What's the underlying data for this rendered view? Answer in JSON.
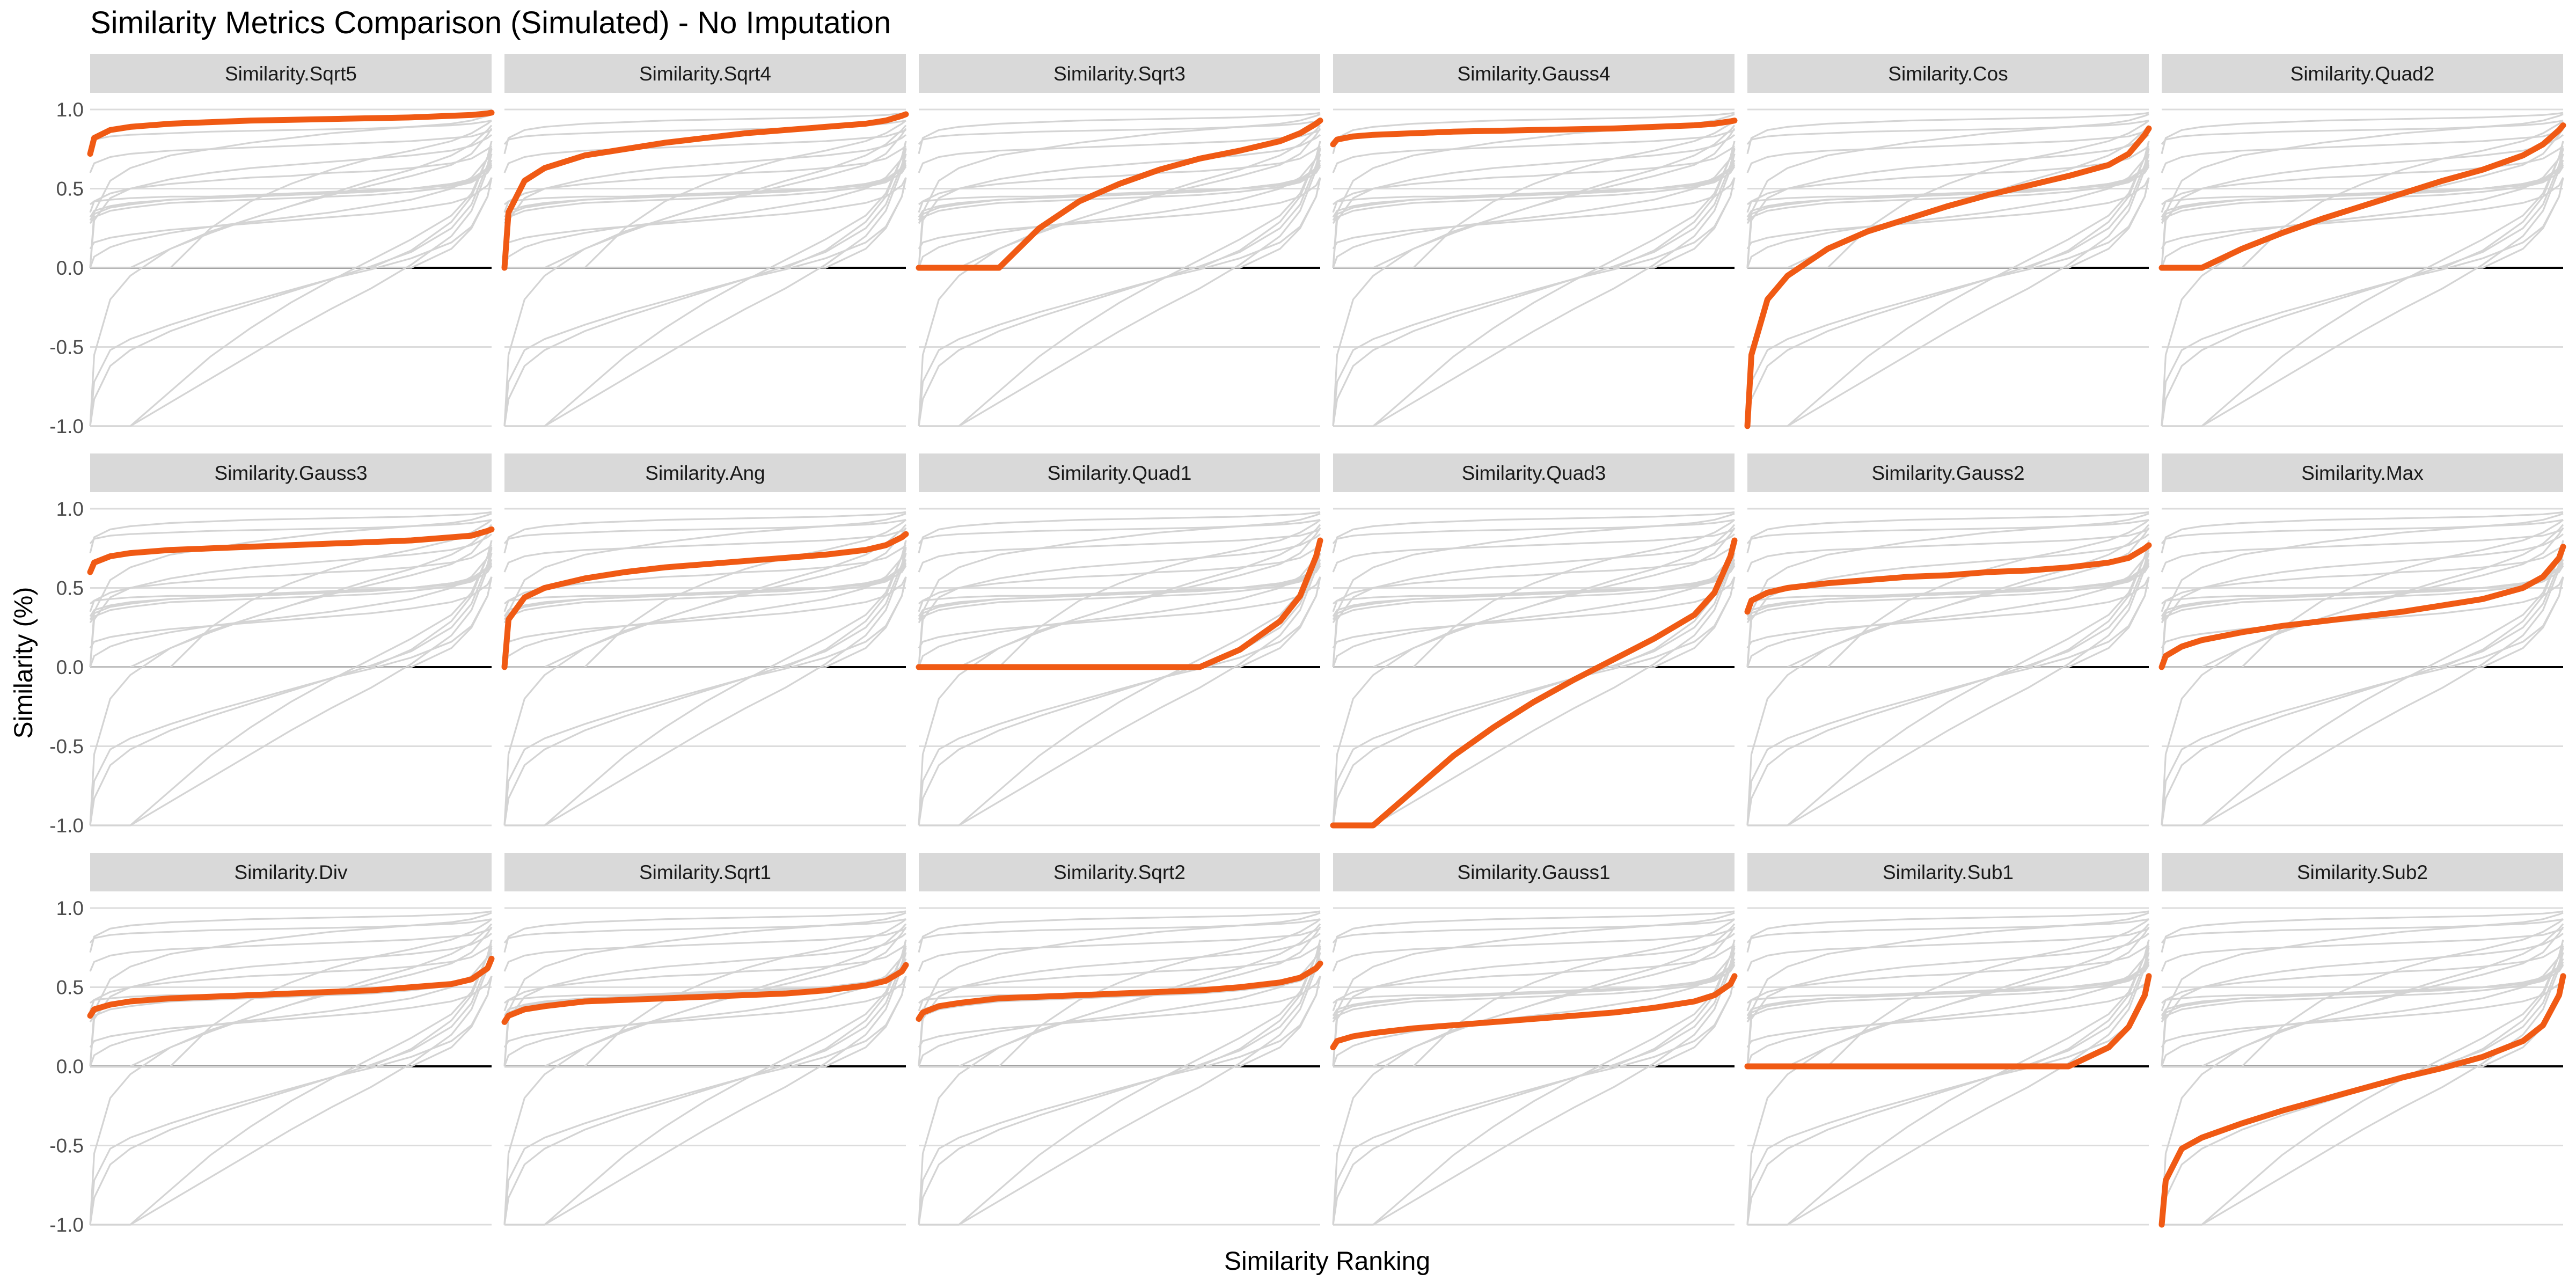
{
  "chart_data": {
    "type": "line",
    "title": "Similarity Metrics Comparison (Simulated) - No Imputation",
    "xlabel": "Similarity Ranking",
    "ylabel": "Similarity (%)",
    "ylim": [
      -1,
      1
    ],
    "yticks": [
      1.0,
      0.5,
      0.0,
      -0.5,
      -1.0
    ],
    "ytick_labels": [
      "1.0",
      "0.5",
      "0.0",
      "-0.5",
      "-1.0"
    ],
    "x": [
      0,
      0.01,
      0.05,
      0.1,
      0.2,
      0.3,
      0.4,
      0.5,
      0.6,
      0.7,
      0.8,
      0.9,
      0.95,
      0.99,
      1.0
    ],
    "grid": true,
    "legend": "none",
    "highlight_color": "#f05a14",
    "background_color": "#d4d4d4",
    "panels": [
      {
        "name": "Similarity.Sqrt5",
        "values": [
          0.72,
          0.82,
          0.87,
          0.89,
          0.91,
          0.92,
          0.93,
          0.935,
          0.94,
          0.945,
          0.95,
          0.96,
          0.965,
          0.975,
          0.98
        ]
      },
      {
        "name": "Similarity.Sqrt4",
        "values": [
          0.0,
          0.35,
          0.55,
          0.63,
          0.71,
          0.75,
          0.79,
          0.82,
          0.85,
          0.87,
          0.89,
          0.91,
          0.93,
          0.96,
          0.97
        ]
      },
      {
        "name": "Similarity.Sqrt3",
        "values": [
          0.0,
          0.0,
          0.0,
          0.0,
          0.0,
          0.25,
          0.42,
          0.53,
          0.62,
          0.69,
          0.74,
          0.8,
          0.85,
          0.91,
          0.93
        ]
      },
      {
        "name": "Similarity.Gauss4",
        "values": [
          0.78,
          0.81,
          0.83,
          0.84,
          0.85,
          0.86,
          0.865,
          0.87,
          0.875,
          0.88,
          0.89,
          0.9,
          0.91,
          0.925,
          0.93
        ]
      },
      {
        "name": "Similarity.Cos",
        "values": [
          -1.0,
          -0.55,
          -0.2,
          -0.05,
          0.12,
          0.23,
          0.31,
          0.39,
          0.46,
          0.52,
          0.58,
          0.65,
          0.72,
          0.84,
          0.88
        ]
      },
      {
        "name": "Similarity.Quad2",
        "values": [
          0.0,
          0.0,
          0.0,
          0.0,
          0.12,
          0.22,
          0.31,
          0.39,
          0.47,
          0.55,
          0.62,
          0.71,
          0.78,
          0.87,
          0.9
        ]
      },
      {
        "name": "Similarity.Gauss3",
        "values": [
          0.6,
          0.66,
          0.7,
          0.72,
          0.74,
          0.75,
          0.76,
          0.77,
          0.78,
          0.79,
          0.8,
          0.82,
          0.83,
          0.86,
          0.87
        ]
      },
      {
        "name": "Similarity.Ang",
        "values": [
          0.0,
          0.3,
          0.44,
          0.5,
          0.56,
          0.6,
          0.63,
          0.65,
          0.67,
          0.69,
          0.71,
          0.74,
          0.77,
          0.82,
          0.84
        ]
      },
      {
        "name": "Similarity.Quad1",
        "values": [
          0.0,
          0.0,
          0.0,
          0.0,
          0.0,
          0.0,
          0.0,
          0.0,
          0.0,
          0.0,
          0.11,
          0.29,
          0.45,
          0.7,
          0.8
        ]
      },
      {
        "name": "Similarity.Quad3",
        "values": [
          -1.0,
          -1.0,
          -1.0,
          -1.0,
          -0.78,
          -0.56,
          -0.38,
          -0.22,
          -0.08,
          0.05,
          0.18,
          0.33,
          0.47,
          0.7,
          0.8
        ]
      },
      {
        "name": "Similarity.Gauss2",
        "values": [
          0.35,
          0.42,
          0.47,
          0.5,
          0.53,
          0.55,
          0.57,
          0.58,
          0.6,
          0.61,
          0.63,
          0.66,
          0.69,
          0.75,
          0.77
        ]
      },
      {
        "name": "Similarity.Max",
        "values": [
          0.0,
          0.07,
          0.13,
          0.17,
          0.22,
          0.26,
          0.29,
          0.32,
          0.35,
          0.39,
          0.43,
          0.5,
          0.57,
          0.69,
          0.76
        ]
      },
      {
        "name": "Similarity.Div",
        "values": [
          0.32,
          0.36,
          0.39,
          0.41,
          0.43,
          0.44,
          0.45,
          0.46,
          0.47,
          0.48,
          0.5,
          0.52,
          0.55,
          0.62,
          0.68
        ]
      },
      {
        "name": "Similarity.Sqrt1",
        "values": [
          0.28,
          0.32,
          0.36,
          0.38,
          0.41,
          0.42,
          0.43,
          0.44,
          0.45,
          0.46,
          0.48,
          0.51,
          0.54,
          0.6,
          0.64
        ]
      },
      {
        "name": "Similarity.Sqrt2",
        "values": [
          0.3,
          0.34,
          0.38,
          0.4,
          0.43,
          0.44,
          0.45,
          0.46,
          0.47,
          0.48,
          0.5,
          0.53,
          0.56,
          0.62,
          0.65
        ]
      },
      {
        "name": "Similarity.Gauss1",
        "values": [
          0.12,
          0.16,
          0.19,
          0.21,
          0.24,
          0.26,
          0.28,
          0.3,
          0.32,
          0.34,
          0.37,
          0.41,
          0.45,
          0.52,
          0.57
        ]
      },
      {
        "name": "Similarity.Sub1",
        "values": [
          0.0,
          0.0,
          0.0,
          0.0,
          0.0,
          0.0,
          0.0,
          0.0,
          0.0,
          0.0,
          0.0,
          0.12,
          0.25,
          0.45,
          0.57
        ]
      },
      {
        "name": "Similarity.Sub2",
        "values": [
          -1.0,
          -0.72,
          -0.52,
          -0.45,
          -0.36,
          -0.28,
          -0.21,
          -0.14,
          -0.07,
          -0.01,
          0.06,
          0.16,
          0.26,
          0.45,
          0.57
        ]
      }
    ],
    "background_series": [
      {
        "values": [
          0.72,
          0.82,
          0.87,
          0.89,
          0.91,
          0.92,
          0.93,
          0.935,
          0.94,
          0.945,
          0.95,
          0.96,
          0.965,
          0.975,
          0.98
        ]
      },
      {
        "values": [
          0.0,
          0.35,
          0.55,
          0.63,
          0.71,
          0.75,
          0.79,
          0.82,
          0.85,
          0.87,
          0.89,
          0.91,
          0.93,
          0.96,
          0.97
        ]
      },
      {
        "values": [
          0.0,
          0.0,
          0.0,
          0.0,
          0.0,
          0.25,
          0.42,
          0.53,
          0.62,
          0.69,
          0.74,
          0.8,
          0.85,
          0.91,
          0.93
        ]
      },
      {
        "values": [
          0.78,
          0.81,
          0.83,
          0.84,
          0.85,
          0.86,
          0.865,
          0.87,
          0.875,
          0.88,
          0.89,
          0.9,
          0.91,
          0.925,
          0.93
        ]
      },
      {
        "values": [
          -1.0,
          -0.55,
          -0.2,
          -0.05,
          0.12,
          0.23,
          0.31,
          0.39,
          0.46,
          0.52,
          0.58,
          0.65,
          0.72,
          0.84,
          0.88
        ]
      },
      {
        "values": [
          0.0,
          0.0,
          0.0,
          0.0,
          0.12,
          0.22,
          0.31,
          0.39,
          0.47,
          0.55,
          0.62,
          0.71,
          0.78,
          0.87,
          0.9
        ]
      },
      {
        "values": [
          0.6,
          0.66,
          0.7,
          0.72,
          0.74,
          0.75,
          0.76,
          0.77,
          0.78,
          0.79,
          0.8,
          0.82,
          0.83,
          0.86,
          0.87
        ]
      },
      {
        "values": [
          0.0,
          0.3,
          0.44,
          0.5,
          0.56,
          0.6,
          0.63,
          0.65,
          0.67,
          0.69,
          0.71,
          0.74,
          0.77,
          0.82,
          0.84
        ]
      },
      {
        "values": [
          0.0,
          0.0,
          0.0,
          0.0,
          0.0,
          0.0,
          0.0,
          0.0,
          0.0,
          0.0,
          0.11,
          0.29,
          0.45,
          0.7,
          0.8
        ]
      },
      {
        "values": [
          -1.0,
          -1.0,
          -1.0,
          -1.0,
          -0.78,
          -0.56,
          -0.38,
          -0.22,
          -0.08,
          0.05,
          0.18,
          0.33,
          0.47,
          0.7,
          0.8
        ]
      },
      {
        "values": [
          0.35,
          0.42,
          0.47,
          0.5,
          0.53,
          0.55,
          0.57,
          0.58,
          0.6,
          0.61,
          0.63,
          0.66,
          0.69,
          0.75,
          0.77
        ]
      },
      {
        "values": [
          0.0,
          0.07,
          0.13,
          0.17,
          0.22,
          0.26,
          0.29,
          0.32,
          0.35,
          0.39,
          0.43,
          0.5,
          0.57,
          0.69,
          0.76
        ]
      },
      {
        "values": [
          0.32,
          0.36,
          0.39,
          0.41,
          0.43,
          0.44,
          0.45,
          0.46,
          0.47,
          0.48,
          0.5,
          0.52,
          0.55,
          0.62,
          0.68
        ]
      },
      {
        "values": [
          0.28,
          0.32,
          0.36,
          0.38,
          0.41,
          0.42,
          0.43,
          0.44,
          0.45,
          0.46,
          0.48,
          0.51,
          0.54,
          0.6,
          0.64
        ]
      },
      {
        "values": [
          0.3,
          0.34,
          0.38,
          0.4,
          0.43,
          0.44,
          0.45,
          0.46,
          0.47,
          0.48,
          0.5,
          0.53,
          0.56,
          0.62,
          0.65
        ]
      },
      {
        "values": [
          0.12,
          0.16,
          0.19,
          0.21,
          0.24,
          0.26,
          0.28,
          0.3,
          0.32,
          0.34,
          0.37,
          0.41,
          0.45,
          0.52,
          0.57
        ]
      },
      {
        "values": [
          0.0,
          0.0,
          0.0,
          0.0,
          0.0,
          0.0,
          0.0,
          0.0,
          0.0,
          0.0,
          0.0,
          0.12,
          0.25,
          0.45,
          0.57
        ]
      },
      {
        "values": [
          -1.0,
          -0.72,
          -0.52,
          -0.45,
          -0.36,
          -0.28,
          -0.21,
          -0.14,
          -0.07,
          -0.01,
          0.06,
          0.16,
          0.26,
          0.45,
          0.57
        ]
      },
      {
        "values": [
          -1.0,
          -0.83,
          -0.62,
          -0.52,
          -0.4,
          -0.31,
          -0.23,
          -0.15,
          -0.07,
          0.01,
          0.1,
          0.25,
          0.4,
          0.65,
          0.75
        ]
      },
      {
        "values": [
          -1.0,
          -1.0,
          -1.0,
          -1.0,
          -0.85,
          -0.7,
          -0.55,
          -0.4,
          -0.26,
          -0.13,
          0.02,
          0.2,
          0.36,
          0.62,
          0.72
        ]
      },
      {
        "values": [
          0.4,
          0.42,
          0.43,
          0.44,
          0.45,
          0.45,
          0.46,
          0.47,
          0.48,
          0.49,
          0.5,
          0.53,
          0.56,
          0.63,
          0.66
        ]
      }
    ]
  }
}
